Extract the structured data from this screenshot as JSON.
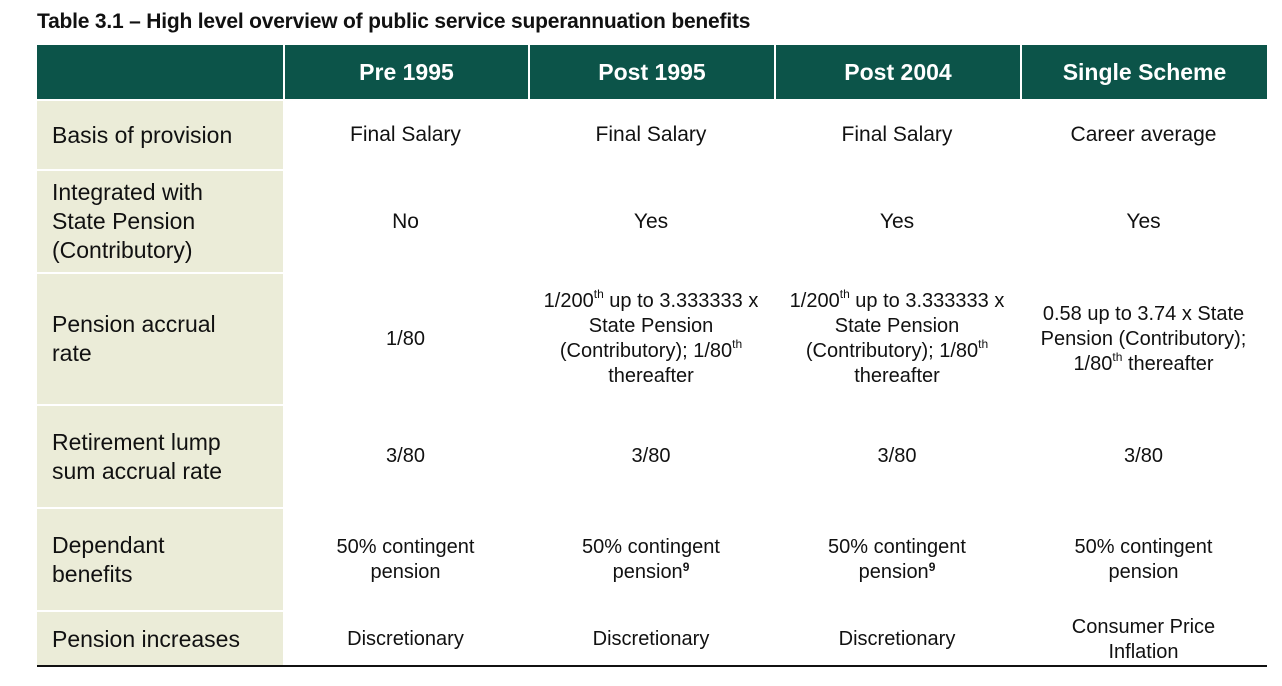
{
  "title": "Table 3.1 – High level overview of public service superannuation benefits",
  "header": {
    "corner": "",
    "columns": [
      "Pre 1995",
      "Post 1995",
      "Post 2004",
      "Single Scheme"
    ]
  },
  "rows": [
    {
      "label": "Basis of provision",
      "cells": [
        "Final Salary",
        "Final Salary",
        "Final Salary",
        "Career average"
      ]
    },
    {
      "label": "Integrated with State Pension (Contributory)",
      "cells": [
        "No",
        "Yes",
        "Yes",
        "Yes"
      ]
    },
    {
      "label": "Pension accrual rate",
      "cells": [
        "1/80",
        {
          "a": "1/200",
          "a_sup": "th",
          "b": " up to 3.333333 x State Pension (Contributory); 1/80",
          "b_sup": "th",
          "c": " thereafter"
        },
        {
          "a": "1/200",
          "a_sup": "th",
          "b": " up to 3.333333 x State Pension (Contributory); 1/80",
          "b_sup": "th",
          "c": " thereafter"
        },
        {
          "b": "0.58 up to 3.74 x State Pension (Contributory); 1/80",
          "b_sup": "th",
          "c": " thereafter"
        }
      ]
    },
    {
      "label": "Retirement lump sum accrual rate",
      "cells": [
        "3/80",
        "3/80",
        "3/80",
        "3/80"
      ]
    },
    {
      "label": "Dependant benefits",
      "cells": [
        {
          "text": "50% contingent pension"
        },
        {
          "text": "50% contingent pension",
          "footnote": "9"
        },
        {
          "text": "50% contingent pension",
          "footnote": "9"
        },
        {
          "text": "50% contingent pension"
        }
      ]
    },
    {
      "label": "Pension increases",
      "cells": [
        "Discretionary",
        "Discretionary",
        "Discretionary",
        "Consumer Price Inflation"
      ]
    }
  ]
}
